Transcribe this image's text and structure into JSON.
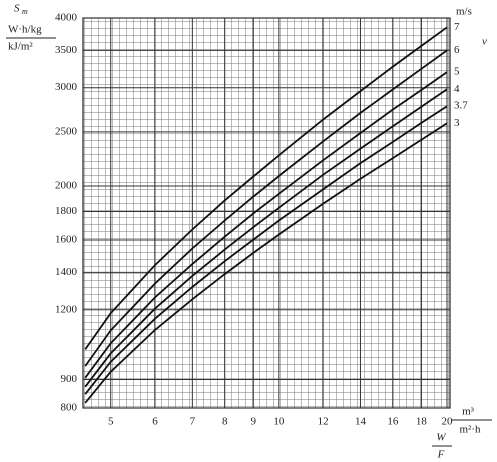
{
  "chart_data": {
    "type": "line",
    "y_symbol": "S",
    "y_subscript": "m",
    "y_units": [
      "W·h/kg",
      "kJ/m²"
    ],
    "x_label_numerator": "W",
    "x_label_denominator": "F",
    "x_unit_numerator": "m³",
    "x_unit_denominator": "m²·h",
    "legend_title": "v",
    "legend_units": "m/s",
    "xscale": "log",
    "yscale": "log",
    "grid": true,
    "xlim": [
      4.46,
      20.25
    ],
    "ylim": [
      800,
      4000
    ],
    "xticks": [
      5,
      6,
      7,
      8,
      9,
      10,
      12,
      14,
      16,
      18,
      20
    ],
    "yticks": [
      800,
      900,
      1200,
      1400,
      1600,
      1800,
      2000,
      2500,
      3000,
      3500,
      4000
    ],
    "x": [
      4.5,
      5,
      6,
      7,
      8,
      9,
      10,
      12,
      14,
      16,
      18,
      20
    ],
    "series": [
      {
        "name": "7",
        "color": "#111111",
        "values": [
          1019,
          1183,
          1442,
          1671,
          1884,
          2080,
          2270,
          2630,
          2958,
          3273,
          3565,
          3850
        ]
      },
      {
        "name": "6",
        "color": "#111111",
        "values": [
          951,
          1102,
          1337,
          1545,
          1734,
          1914,
          2084,
          2404,
          2704,
          2979,
          3243,
          3500
        ]
      },
      {
        "name": "5",
        "color": "#111111",
        "values": [
          906,
          1045,
          1262,
          1449,
          1622,
          1786,
          1936,
          2223,
          2489,
          2742,
          2972,
          3200
        ]
      },
      {
        "name": "4",
        "color": "#111111",
        "values": [
          873,
          1002,
          1205,
          1380,
          1538,
          1687,
          1828,
          2094,
          2333,
          2559,
          2773,
          2980
        ]
      },
      {
        "name": "3.7",
        "color": "#111111",
        "values": [
          847,
          968,
          1156,
          1318,
          1466,
          1603,
          1734,
          1972,
          2198,
          2399,
          2594,
          2780
        ]
      },
      {
        "name": "3",
        "color": "#111111",
        "values": [
          817,
          929,
          1104,
          1253,
          1390,
          1517,
          1637,
          1858,
          2061,
          2244,
          2421,
          2590
        ]
      }
    ]
  }
}
